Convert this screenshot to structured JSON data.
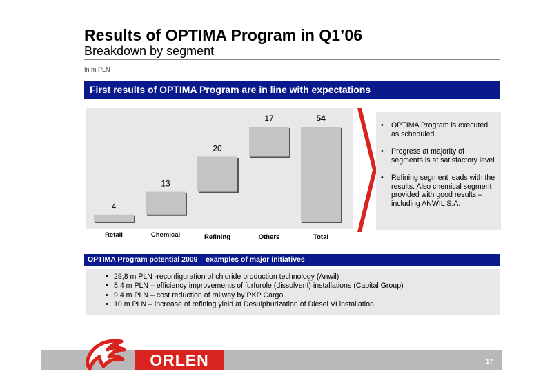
{
  "header": {
    "title": "Results of OPTIMA Program in Q1’06",
    "subtitle": "Breakdown by segment",
    "unit": "In m PLN"
  },
  "banner": "First results of OPTIMA Program are in line with expectations",
  "chart_data": {
    "type": "bar",
    "subtype": "waterfall",
    "categories": [
      "Retail",
      "Chemical",
      "Refining",
      "Others",
      "Total"
    ],
    "values": [
      4,
      13,
      20,
      17,
      54
    ],
    "data_labels": [
      "4",
      "13",
      "20",
      "17",
      "54"
    ],
    "title": "",
    "xlabel": "",
    "ylabel": "",
    "ylim": [
      0,
      54
    ],
    "grid": false,
    "legend": "none"
  },
  "summary": {
    "bullets": [
      "OPTIMA Program is executed as scheduled.",
      "Progress at majority of segments is at satisfactory level",
      "Refining segment leads with the results. Also chemical segment provided with good results – including ANWIL S.A."
    ]
  },
  "initiatives": {
    "title": "OPTIMA Program potential 2009 – examples of major initiatives",
    "items": [
      "29,8 m PLN -reconfiguration of chloride production technology (Anwil)",
      "5,4 m PLN – efficiency improvements of furfurole (dissolvent) installations (Capital Group)",
      "9,4 m PLN – cost reduction of railway by PKP Cargo",
      "10 m PLN – increase of refining yield at Desulphurization of Diesel VI installation"
    ]
  },
  "footer": {
    "logo_text": "ORLEN",
    "page_number": "17"
  },
  "colors": {
    "banner": "#0a1a8c",
    "panel": "#e8e8e8",
    "bar": "#c4c4c4",
    "brand_red": "#d8231f",
    "footer_grey": "#b9b9b9"
  }
}
